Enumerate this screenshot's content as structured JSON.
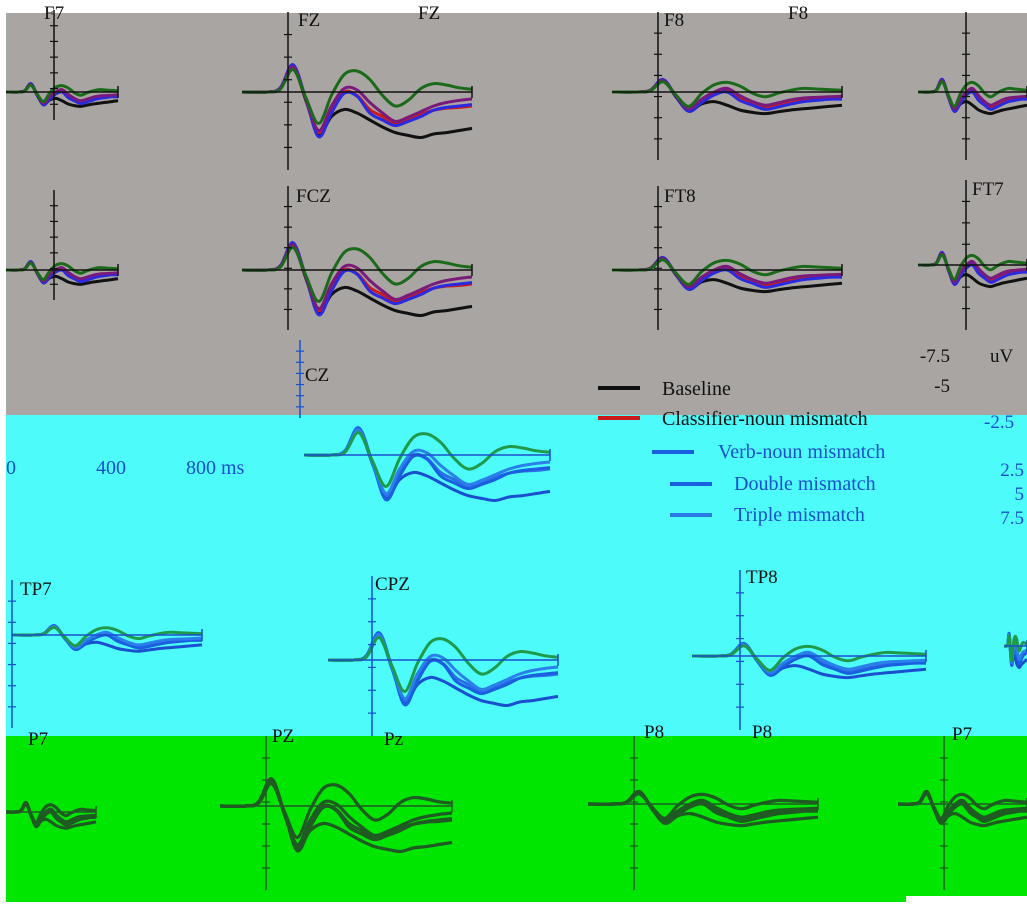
{
  "bands": [
    {
      "name": "gray-band",
      "color": "#a9a5a2"
    },
    {
      "name": "cyan-band",
      "color": "#4dfbfb"
    },
    {
      "name": "green-band",
      "color": "#00e600"
    }
  ],
  "chart_data": {
    "type": "line",
    "title": "",
    "xlabel": "ms",
    "ylabel": "uV",
    "x_ticks": [
      "0",
      "400",
      "800 ms"
    ],
    "y_ticks": [
      "-7.5",
      "-5",
      "-2.5",
      "2.5",
      "5",
      "7.5"
    ],
    "y_unit": "uV",
    "xlim": [
      -100,
      800
    ],
    "ylim": [
      -7.5,
      7.5
    ],
    "x_axis_caption": {
      "zero": "0",
      "mid": "400",
      "end": "800 ms"
    },
    "y_axis_caption": {
      "neg75": "-7.5",
      "unit": "uV",
      "neg5": "-5",
      "neg25": "-2.5",
      "pos25": "2.5",
      "pos5": "5",
      "pos75": "7.5"
    },
    "legend": [
      {
        "name": "Baseline",
        "color": "#111111"
      },
      {
        "name": "Classifier-noun mismatch",
        "color": "#cc1a1a"
      },
      {
        "name": "Verb-noun mismatch",
        "color": "#2a2ae0"
      },
      {
        "name": "Double mismatch",
        "color": "#7a1a7a"
      },
      {
        "name": "Triple mismatch",
        "color": "#1a6a1a"
      }
    ],
    "electrodes": {
      "f7": "F7",
      "fz": "FZ",
      "fz_b": "FZ",
      "f8": "F8",
      "f8_b": "F8",
      "fcz": "FCZ",
      "ft8": "FT8",
      "ft7": "FT7",
      "cz": "CZ",
      "tp7": "TP7",
      "cpz": "CPZ",
      "tp8": "TP8",
      "p7": "P7",
      "pz": "PZ",
      "pz_b": "Pz",
      "p8": "P8",
      "p8_b": "P8",
      "p7_b": "P7"
    },
    "x": [
      -100,
      0,
      50,
      100,
      150,
      200,
      250,
      300,
      350,
      400,
      450,
      500,
      550,
      600,
      650,
      700,
      750,
      800
    ],
    "waveforms": {
      "midline": {
        "Baseline": [
          0,
          0,
          -0.5,
          -3.5,
          1.2,
          6.0,
          3.5,
          2.5,
          3.0,
          4.0,
          5.0,
          5.8,
          6.2,
          6.5,
          6.0,
          5.8,
          5.5,
          5.2
        ],
        "Classifier-noun mismatch": [
          0,
          0,
          -0.6,
          -3.8,
          1.0,
          5.8,
          2.5,
          0.0,
          0.5,
          2.5,
          3.5,
          4.5,
          4.0,
          3.2,
          2.6,
          2.3,
          2.2,
          2.0
        ],
        "Verb-noun mismatch": [
          0,
          0,
          -0.6,
          -3.9,
          1.0,
          6.4,
          3.0,
          0.2,
          0.6,
          3.0,
          4.0,
          4.8,
          4.2,
          3.5,
          2.6,
          2.2,
          2.0,
          1.8
        ],
        "Double mismatch": [
          0,
          0,
          -0.5,
          -3.6,
          1.0,
          5.5,
          2.0,
          -0.5,
          -0.3,
          1.5,
          3.0,
          4.2,
          3.6,
          2.8,
          2.0,
          1.5,
          1.2,
          1.0
        ],
        "Triple mismatch": [
          0,
          0,
          -0.4,
          -3.2,
          0.8,
          4.5,
          0.5,
          -2.5,
          -3.0,
          -1.8,
          0.5,
          2.0,
          1.2,
          -0.5,
          -1.2,
          -1.0,
          -0.6,
          -0.4
        ]
      },
      "lateral": {
        "Baseline": [
          0,
          0,
          -0.3,
          -2.0,
          0.8,
          3.2,
          2.0,
          1.6,
          2.2,
          3.0,
          3.4,
          3.6,
          3.3,
          3.0,
          2.8,
          2.6,
          2.4,
          2.2
        ],
        "Classifier-noun mismatch": [
          0,
          0,
          -0.3,
          -2.0,
          0.6,
          3.0,
          1.5,
          0.2,
          -0.4,
          1.0,
          2.0,
          2.6,
          2.2,
          1.8,
          1.4,
          1.2,
          1.1,
          1.0
        ],
        "Verb-noun mismatch": [
          0,
          0,
          -0.3,
          -2.1,
          0.7,
          3.2,
          1.8,
          0.5,
          0.0,
          1.4,
          2.2,
          2.9,
          2.5,
          2.0,
          1.6,
          1.4,
          1.2,
          1.2
        ],
        "Double mismatch": [
          0,
          0,
          -0.3,
          -1.9,
          0.6,
          2.8,
          1.2,
          0.0,
          -0.6,
          0.6,
          1.6,
          2.2,
          1.8,
          1.3,
          1.0,
          0.9,
          0.8,
          0.7
        ],
        "Triple mismatch": [
          0,
          0,
          -0.2,
          -1.7,
          0.5,
          2.4,
          0.3,
          -1.2,
          -1.6,
          -1.0,
          0.2,
          0.8,
          0.2,
          -0.3,
          -0.6,
          -0.5,
          -0.4,
          -0.3
        ]
      }
    }
  }
}
